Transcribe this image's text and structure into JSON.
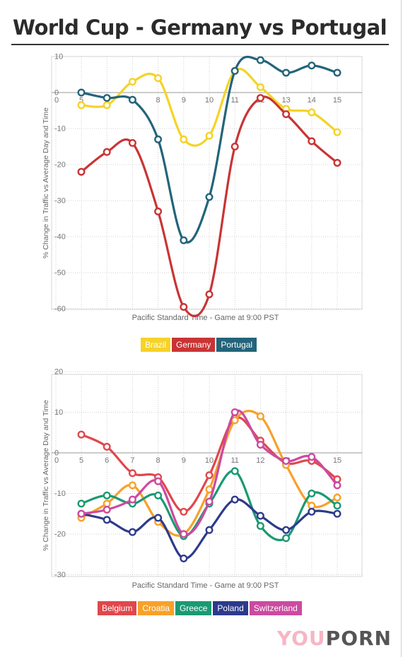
{
  "title": "World Cup - Germany vs Portugal",
  "logo": {
    "you": "YOU",
    "porn": "PORN"
  },
  "chart_data": [
    {
      "type": "line",
      "xlabel": "Pacific Standard Time - Game at 9:00 PST",
      "ylabel": "% Change in Traffic vs Average Day and Time",
      "x": [
        5,
        6,
        7,
        8,
        9,
        10,
        11,
        12,
        13,
        14,
        15
      ],
      "xticks": [
        "0",
        "5",
        "6",
        "7",
        "8",
        "9",
        "10",
        "11",
        "12",
        "13",
        "14",
        "15"
      ],
      "yticks": [
        "10",
        "0",
        "-10",
        "-20",
        "-30",
        "-40",
        "-50",
        "-60"
      ],
      "ylim": [
        -60,
        10
      ],
      "series": [
        {
          "name": "Brazil",
          "color": "#f5d327",
          "values": [
            -3.5,
            -3.5,
            3,
            4,
            -13,
            -12,
            6,
            1.5,
            -4.5,
            -5.5,
            -11
          ]
        },
        {
          "name": "Germany",
          "color": "#c93434",
          "values": [
            -22,
            -16.5,
            -14,
            -33,
            -59.5,
            -56,
            -15,
            -1.5,
            -6,
            -13.5,
            -19.5
          ]
        },
        {
          "name": "Portugal",
          "color": "#23647a",
          "values": [
            0,
            -1.5,
            -2,
            -13,
            -41,
            -29,
            6,
            9,
            5.5,
            7.5,
            5.5
          ]
        }
      ]
    },
    {
      "type": "line",
      "xlabel": "Pacific Standard Time - Game at 9:00 PST",
      "ylabel": "% Change in Traffic vs Average Day and Time",
      "x": [
        5,
        6,
        7,
        8,
        9,
        10,
        11,
        12,
        13,
        14,
        15
      ],
      "xticks": [
        "0",
        "5",
        "6",
        "7",
        "8",
        "9",
        "10",
        "11",
        "12",
        "13",
        "14",
        "15"
      ],
      "yticks": [
        "20",
        "10",
        "0",
        "-10",
        "-20",
        "-30"
      ],
      "ylim": [
        -30,
        20
      ],
      "series": [
        {
          "name": "Belgium",
          "color": "#e0474c",
          "values": [
            4.5,
            1.5,
            -5,
            -6,
            -14.5,
            -5.5,
            8.5,
            3,
            -2.5,
            -2,
            -6.5
          ]
        },
        {
          "name": "Croatia",
          "color": "#f7a12a",
          "values": [
            -16,
            -12.5,
            -8,
            -17,
            -20,
            -9,
            8,
            9,
            -3,
            -13,
            -11
          ]
        },
        {
          "name": "Greece",
          "color": "#1a9a72",
          "values": [
            -12.5,
            -10.5,
            -12.5,
            -10.5,
            -20.5,
            -12.5,
            -4.5,
            -18,
            -21,
            -10,
            -13
          ]
        },
        {
          "name": "Poland",
          "color": "#2d3a8c",
          "values": [
            -15,
            -16.5,
            -19.5,
            -16,
            -26,
            -19,
            -11.5,
            -15.5,
            -19,
            -14.5,
            -15
          ]
        },
        {
          "name": "Switzerland",
          "color": "#cc4aa0",
          "values": [
            -15,
            -14,
            -11.5,
            -7,
            -20,
            -12,
            10,
            2,
            -2,
            -1,
            -8
          ]
        }
      ]
    }
  ]
}
